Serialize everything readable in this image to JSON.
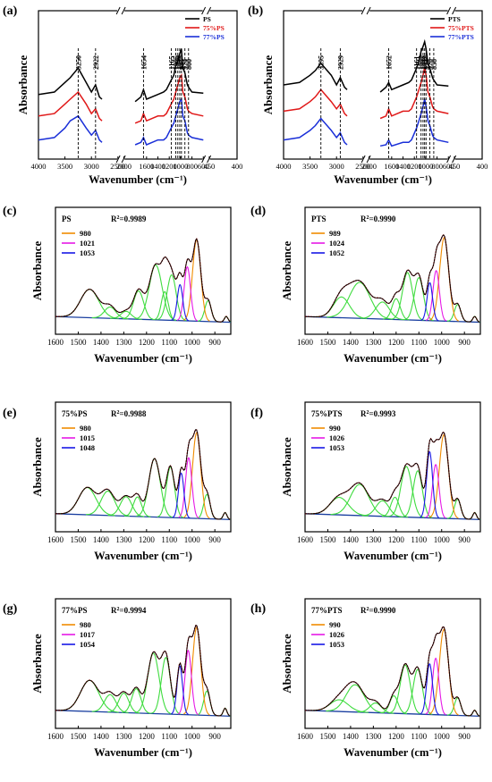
{
  "figure": {
    "panels": [
      {
        "id": "top-a",
        "tag": "(a)",
        "xlabel": "Wavenumber (cm⁻¹)",
        "ylabel": "Absorbance",
        "ticks": [
          "4000",
          "3500",
          "3000",
          "2500",
          "2000",
          "1600",
          "1400",
          "1200",
          "1000",
          "800",
          "600",
          "450",
          "400"
        ],
        "legend": [
          "PS",
          "75%PS",
          "77%PS"
        ],
        "peaks": [
          "3250",
          "2922",
          "1654",
          "1165",
          "1085",
          "1049",
          "1015",
          "985",
          "924",
          "860",
          "478"
        ]
      },
      {
        "id": "top-b",
        "tag": "(b)",
        "xlabel": "Wavenumber (cm⁻¹)",
        "ylabel": "Absorbance",
        "ticks": [
          "4000",
          "3500",
          "3000",
          "2500",
          "2000",
          "1600",
          "1400",
          "1200",
          "1000",
          "800",
          "600",
          "450",
          "400"
        ],
        "legend": [
          "PTS",
          "75%PTS",
          "77%PTS"
        ],
        "peaks": [
          "3295",
          "2929",
          "1652",
          "1161",
          "1082",
          "1047",
          "1019",
          "994",
          "928",
          "858",
          "477"
        ]
      }
    ],
    "fits": [
      {
        "id": "fit-c",
        "tag": "(c)",
        "sample": "PS",
        "r2": "=0.9989",
        "components": [
          "980",
          "1021",
          "1053"
        ]
      },
      {
        "id": "fit-d",
        "tag": "(d)",
        "sample": "PTS",
        "r2": "=0.9990",
        "components": [
          "989",
          "1024",
          "1052"
        ]
      },
      {
        "id": "fit-e",
        "tag": "(e)",
        "sample": "75%PS",
        "r2": "=0.9988",
        "components": [
          "980",
          "1015",
          "1048"
        ]
      },
      {
        "id": "fit-f",
        "tag": "(f)",
        "sample": "75%PTS",
        "r2": "=0.9993",
        "components": [
          "990",
          "1026",
          "1053"
        ]
      },
      {
        "id": "fit-g",
        "tag": "(g)",
        "sample": "77%PS",
        "r2": "=0.9994",
        "components": [
          "980",
          "1017",
          "1054"
        ]
      },
      {
        "id": "fit-h",
        "tag": "(h)",
        "sample": "77%PTS",
        "r2": "=0.9990",
        "components": [
          "990",
          "1026",
          "1053"
        ]
      }
    ],
    "fit_axis": {
      "xlabel": "Wavenumber (cm⁻¹)",
      "ylabel": "Absorbance",
      "ticks": [
        "1600",
        "1500",
        "1400",
        "1300",
        "1200",
        "1100",
        "1000",
        "900"
      ]
    }
  },
  "chart_data": [
    {
      "type": "line",
      "panel": "(a)",
      "xlabel": "Wavenumber (cm⁻¹)",
      "ylabel": "Absorbance",
      "x_reversed": true,
      "x_axis_breaks": [
        [
          2500,
          2000
        ],
        [
          600,
          450
        ]
      ],
      "series": [
        {
          "name": "PS",
          "color": "#000000",
          "x": [
            4000,
            3700,
            3500,
            3400,
            3250,
            3100,
            3000,
            2922,
            2850,
            2800,
            1800,
            1700,
            1654,
            1600,
            1400,
            1300,
            1250,
            1165,
            1120,
            1085,
            1049,
            1015,
            985,
            960,
            924,
            880,
            860,
            800,
            600,
            478,
            400
          ],
          "y": [
            0.48,
            0.5,
            0.58,
            0.62,
            0.7,
            0.58,
            0.5,
            0.56,
            0.46,
            0.44,
            0.42,
            0.46,
            0.52,
            0.44,
            0.48,
            0.5,
            0.52,
            0.6,
            0.64,
            0.72,
            0.76,
            0.82,
            0.86,
            0.7,
            0.66,
            0.56,
            0.54,
            0.5,
            0.49,
            0.48,
            0.48
          ]
        },
        {
          "name": "75%PS",
          "color": "#e01818",
          "x": [
            4000,
            3700,
            3500,
            3400,
            3250,
            3100,
            3000,
            2922,
            2850,
            2800,
            1800,
            1700,
            1654,
            1600,
            1400,
            1300,
            1250,
            1165,
            1120,
            1085,
            1049,
            1015,
            985,
            960,
            924,
            880,
            860,
            800,
            600,
            478,
            400
          ],
          "y": [
            0.3,
            0.32,
            0.4,
            0.44,
            0.5,
            0.4,
            0.32,
            0.36,
            0.28,
            0.26,
            0.24,
            0.26,
            0.32,
            0.26,
            0.3,
            0.3,
            0.32,
            0.4,
            0.44,
            0.5,
            0.56,
            0.62,
            0.64,
            0.5,
            0.46,
            0.36,
            0.34,
            0.32,
            0.3,
            0.3,
            0.3
          ]
        },
        {
          "name": "77%PS",
          "color": "#1a2fd8",
          "x": [
            4000,
            3700,
            3500,
            3400,
            3250,
            3100,
            3000,
            2922,
            2850,
            2800,
            1800,
            1700,
            1654,
            1600,
            1400,
            1300,
            1250,
            1165,
            1120,
            1085,
            1049,
            1015,
            985,
            960,
            924,
            880,
            860,
            800,
            600,
            478,
            400
          ],
          "y": [
            0.1,
            0.12,
            0.2,
            0.26,
            0.3,
            0.2,
            0.14,
            0.18,
            0.1,
            0.08,
            0.06,
            0.08,
            0.12,
            0.06,
            0.1,
            0.1,
            0.12,
            0.2,
            0.24,
            0.3,
            0.36,
            0.42,
            0.44,
            0.3,
            0.26,
            0.16,
            0.14,
            0.12,
            0.1,
            0.1,
            0.1
          ]
        }
      ]
    },
    {
      "type": "line",
      "panel": "(b)",
      "xlabel": "Wavenumber (cm⁻¹)",
      "ylabel": "Absorbance",
      "x_reversed": true,
      "x_axis_breaks": [
        [
          2500,
          2000
        ],
        [
          600,
          450
        ]
      ],
      "series": [
        {
          "name": "PTS",
          "color": "#000000",
          "x": [
            4000,
            3700,
            3500,
            3400,
            3295,
            3100,
            3000,
            2929,
            2850,
            2800,
            1800,
            1700,
            1652,
            1600,
            1400,
            1300,
            1250,
            1161,
            1120,
            1082,
            1047,
            1019,
            994,
            960,
            928,
            880,
            858,
            800,
            600,
            477,
            400
          ],
          "y": [
            0.56,
            0.58,
            0.64,
            0.68,
            0.74,
            0.64,
            0.56,
            0.62,
            0.54,
            0.52,
            0.5,
            0.54,
            0.58,
            0.52,
            0.56,
            0.58,
            0.6,
            0.7,
            0.76,
            0.84,
            0.88,
            0.92,
            0.86,
            0.74,
            0.7,
            0.62,
            0.6,
            0.56,
            0.55,
            0.56,
            0.56
          ]
        },
        {
          "name": "75%PTS",
          "color": "#e01818",
          "x": [
            4000,
            3700,
            3500,
            3400,
            3295,
            3100,
            3000,
            2929,
            2850,
            2800,
            1800,
            1700,
            1652,
            1600,
            1400,
            1300,
            1250,
            1161,
            1120,
            1082,
            1047,
            1019,
            994,
            960,
            928,
            880,
            858,
            800,
            600,
            477,
            400
          ],
          "y": [
            0.34,
            0.36,
            0.42,
            0.46,
            0.52,
            0.42,
            0.36,
            0.4,
            0.32,
            0.3,
            0.28,
            0.3,
            0.36,
            0.3,
            0.34,
            0.34,
            0.36,
            0.46,
            0.52,
            0.58,
            0.64,
            0.7,
            0.64,
            0.5,
            0.46,
            0.38,
            0.36,
            0.34,
            0.32,
            0.32,
            0.32
          ]
        },
        {
          "name": "77%PTS",
          "color": "#1a2fd8",
          "x": [
            4000,
            3700,
            3500,
            3400,
            3295,
            3100,
            3000,
            2929,
            2850,
            2800,
            1800,
            1700,
            1652,
            1600,
            1400,
            1300,
            1250,
            1161,
            1120,
            1082,
            1047,
            1019,
            994,
            960,
            928,
            880,
            858,
            800,
            600,
            477,
            400
          ],
          "y": [
            0.1,
            0.12,
            0.18,
            0.22,
            0.28,
            0.18,
            0.12,
            0.16,
            0.08,
            0.06,
            0.05,
            0.06,
            0.1,
            0.05,
            0.08,
            0.08,
            0.1,
            0.2,
            0.26,
            0.32,
            0.38,
            0.44,
            0.38,
            0.26,
            0.22,
            0.14,
            0.12,
            0.1,
            0.08,
            0.08,
            0.08
          ]
        }
      ]
    },
    {
      "type": "line",
      "panel": "(c)",
      "xlim": [
        1600,
        830
      ],
      "x_reversed": true,
      "components": [
        {
          "name": "980",
          "center": 980,
          "height": 0.86,
          "width": 18,
          "color": "#f08c00"
        },
        {
          "name": "1021",
          "center": 1021,
          "height": 0.57,
          "width": 14,
          "color": "#e619e6"
        },
        {
          "name": "1053",
          "center": 1053,
          "height": 0.38,
          "width": 12,
          "color": "#1818e6"
        }
      ],
      "extra_bands": [
        [
          1450,
          0.3,
          40
        ],
        [
          1360,
          0.12,
          25
        ],
        [
          1290,
          0.08,
          22
        ],
        [
          1235,
          0.3,
          22
        ],
        [
          1160,
          0.58,
          28
        ],
        [
          1120,
          0.3,
          15
        ],
        [
          1090,
          0.48,
          20
        ],
        [
          930,
          0.22,
          14
        ],
        [
          850,
          0.06,
          8
        ]
      ]
    },
    {
      "type": "line",
      "panel": "(d)",
      "xlim": [
        1600,
        830
      ],
      "x_reversed": true,
      "components": [
        {
          "name": "989",
          "center": 989,
          "height": 0.88,
          "width": 20,
          "color": "#f08c00"
        },
        {
          "name": "1024",
          "center": 1024,
          "height": 0.53,
          "width": 14,
          "color": "#e619e6"
        },
        {
          "name": "1052",
          "center": 1052,
          "height": 0.4,
          "width": 12,
          "color": "#1818e6"
        }
      ],
      "extra_bands": [
        [
          1440,
          0.22,
          35
        ],
        [
          1360,
          0.38,
          45
        ],
        [
          1260,
          0.18,
          30
        ],
        [
          1200,
          0.22,
          18
        ],
        [
          1150,
          0.5,
          22
        ],
        [
          1100,
          0.45,
          20
        ],
        [
          930,
          0.18,
          14
        ],
        [
          855,
          0.06,
          8
        ]
      ]
    },
    {
      "type": "line",
      "panel": "(e)",
      "xlim": [
        1600,
        830
      ],
      "x_reversed": true,
      "components": [
        {
          "name": "980",
          "center": 980,
          "height": 0.88,
          "width": 18,
          "color": "#f08c00"
        },
        {
          "name": "1015",
          "center": 1015,
          "height": 0.62,
          "width": 14,
          "color": "#e619e6"
        },
        {
          "name": "1048",
          "center": 1048,
          "height": 0.46,
          "width": 12,
          "color": "#1818e6"
        }
      ],
      "extra_bands": [
        [
          1460,
          0.28,
          38
        ],
        [
          1370,
          0.25,
          30
        ],
        [
          1290,
          0.2,
          25
        ],
        [
          1240,
          0.2,
          18
        ],
        [
          1165,
          0.6,
          25
        ],
        [
          1095,
          0.52,
          18
        ],
        [
          935,
          0.25,
          14
        ],
        [
          855,
          0.07,
          8
        ]
      ]
    },
    {
      "type": "line",
      "panel": "(f)",
      "xlim": [
        1600,
        830
      ],
      "x_reversed": true,
      "components": [
        {
          "name": "990",
          "center": 990,
          "height": 0.86,
          "width": 20,
          "color": "#f08c00"
        },
        {
          "name": "1026",
          "center": 1026,
          "height": 0.55,
          "width": 14,
          "color": "#e619e6"
        },
        {
          "name": "1053",
          "center": 1053,
          "height": 0.68,
          "width": 13,
          "color": "#1818e6"
        }
      ],
      "extra_bands": [
        [
          1450,
          0.18,
          40
        ],
        [
          1360,
          0.32,
          40
        ],
        [
          1260,
          0.16,
          28
        ],
        [
          1205,
          0.2,
          18
        ],
        [
          1155,
          0.52,
          24
        ],
        [
          1105,
          0.48,
          20
        ],
        [
          930,
          0.2,
          14
        ],
        [
          855,
          0.07,
          8
        ]
      ]
    },
    {
      "type": "line",
      "panel": "(g)",
      "xlim": [
        1600,
        830
      ],
      "x_reversed": true,
      "components": [
        {
          "name": "980",
          "center": 980,
          "height": 0.9,
          "width": 18,
          "color": "#f08c00"
        },
        {
          "name": "1017",
          "center": 1017,
          "height": 0.66,
          "width": 14,
          "color": "#e619e6"
        },
        {
          "name": "1054",
          "center": 1054,
          "height": 0.5,
          "width": 12,
          "color": "#1818e6"
        }
      ],
      "extra_bands": [
        [
          1450,
          0.32,
          40
        ],
        [
          1360,
          0.18,
          25
        ],
        [
          1300,
          0.2,
          22
        ],
        [
          1245,
          0.25,
          20
        ],
        [
          1170,
          0.62,
          25
        ],
        [
          1115,
          0.58,
          20
        ],
        [
          935,
          0.25,
          14
        ],
        [
          855,
          0.08,
          8
        ]
      ]
    },
    {
      "type": "line",
      "panel": "(h)",
      "xlim": [
        1600,
        830
      ],
      "x_reversed": true,
      "components": [
        {
          "name": "990",
          "center": 990,
          "height": 0.88,
          "width": 20,
          "color": "#f08c00"
        },
        {
          "name": "1026",
          "center": 1026,
          "height": 0.58,
          "width": 14,
          "color": "#e619e6"
        },
        {
          "name": "1053",
          "center": 1053,
          "height": 0.52,
          "width": 13,
          "color": "#1818e6"
        }
      ],
      "extra_bands": [
        [
          1450,
          0.12,
          40
        ],
        [
          1380,
          0.28,
          40
        ],
        [
          1290,
          0.1,
          25
        ],
        [
          1210,
          0.18,
          18
        ],
        [
          1160,
          0.5,
          22
        ],
        [
          1105,
          0.46,
          20
        ],
        [
          930,
          0.18,
          14
        ],
        [
          855,
          0.06,
          8
        ]
      ]
    }
  ]
}
